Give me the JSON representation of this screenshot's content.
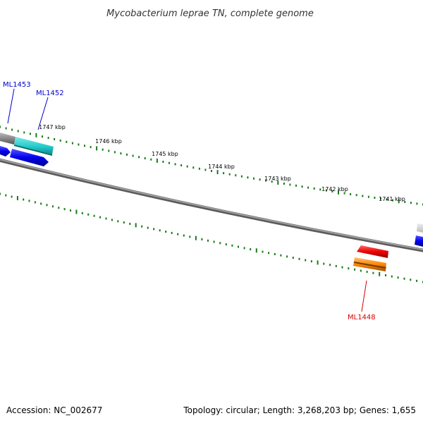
{
  "title": "Mycobacterium leprae TN, complete genome",
  "footer": {
    "accession": "Accession: NC_002677",
    "summary": "Topology: circular; Length: 3,268,203 bp; Genes: 1,655"
  },
  "ruler_labels": [
    "1747 kbp",
    "1746 kbp",
    "1745 kbp",
    "1744 kbp",
    "1743 kbp",
    "1742 kbp",
    "1741 kbp"
  ],
  "gene_labels": [
    {
      "text": "ML1453",
      "color": "#0000cc"
    },
    {
      "text": "ML1452",
      "color": "#0000cc"
    },
    {
      "text": "ML1448",
      "color": "#dd0000"
    }
  ],
  "colors": {
    "backbone": "#7a7a7a",
    "tick": "#1a7a1a",
    "cyan_gene": "#22cccc",
    "blue_gene": "#0000ee",
    "red_gene": "#ee0000",
    "orange_gene": "#ff8800",
    "gray_gene": "#888888"
  }
}
